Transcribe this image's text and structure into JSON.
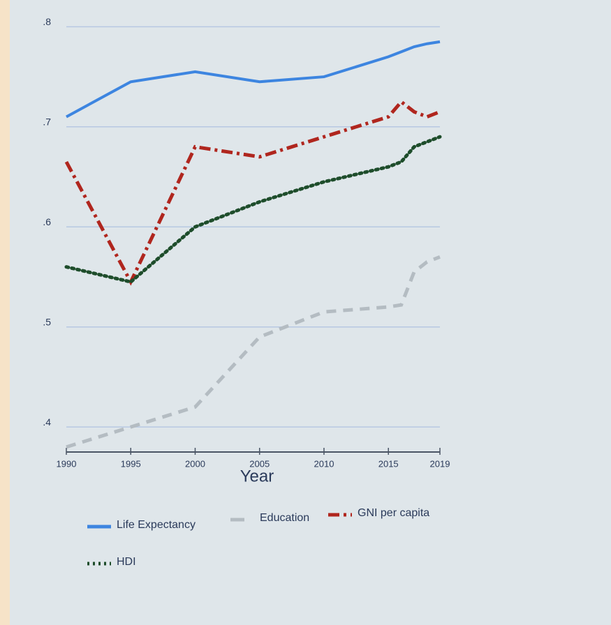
{
  "chart_data": {
    "type": "line",
    "x": [
      1990,
      1995,
      2000,
      2005,
      2010,
      2015,
      2016,
      2017,
      2018,
      2019
    ],
    "xlim": [
      1990,
      2019
    ],
    "xticks": [
      1990,
      1995,
      2000,
      2005,
      2010,
      2015,
      2019
    ],
    "xlabel": "Year",
    "ylim": [
      0.375,
      0.81
    ],
    "yticks": [
      {
        "value": 0.4,
        "label": ".4"
      },
      {
        "value": 0.5,
        "label": ".5"
      },
      {
        "value": 0.6,
        "label": ".6"
      },
      {
        "value": 0.7,
        "label": ".7"
      },
      {
        "value": 0.8,
        "label": ".8"
      }
    ],
    "grid": true,
    "series": [
      {
        "name": "Life Expectancy",
        "color": "#3d85e0",
        "style": "solid",
        "values": [
          0.71,
          0.745,
          0.755,
          0.745,
          0.75,
          0.77,
          0.775,
          0.78,
          0.783,
          0.785
        ]
      },
      {
        "name": "Education",
        "color": "#b4bcc2",
        "style": "dashed",
        "values": [
          0.38,
          0.4,
          0.42,
          0.49,
          0.515,
          0.52,
          0.522,
          0.555,
          0.565,
          0.57
        ]
      },
      {
        "name": "GNI per capita",
        "color": "#b0261e",
        "style": "dashdot",
        "values": [
          0.665,
          0.545,
          0.68,
          0.67,
          0.69,
          0.71,
          0.725,
          0.715,
          0.71,
          0.715
        ]
      },
      {
        "name": "HDI",
        "color": "#1e4d2b",
        "style": "dotted",
        "values": [
          0.56,
          0.545,
          0.6,
          0.625,
          0.645,
          0.66,
          0.665,
          0.68,
          0.685,
          0.69
        ]
      }
    ]
  }
}
